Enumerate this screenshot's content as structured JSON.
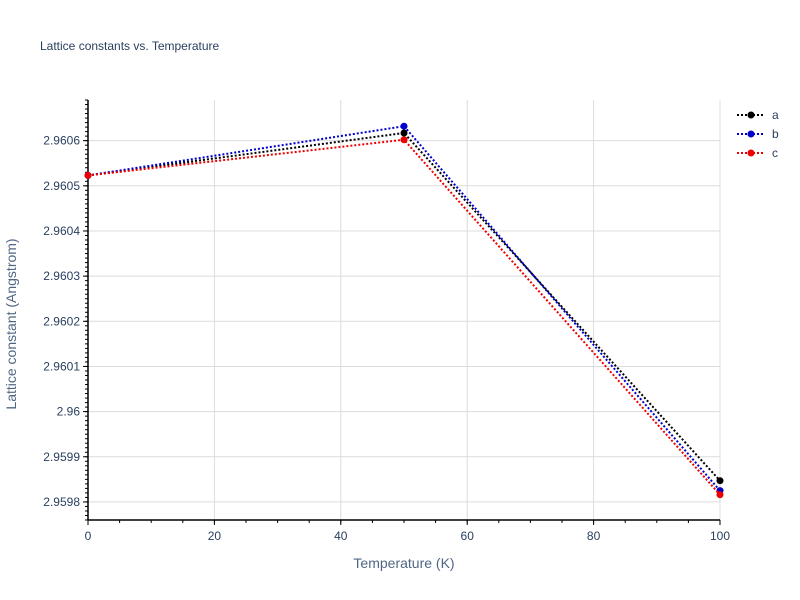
{
  "chart_data": {
    "type": "line",
    "title": "Lattice constants vs. Temperature",
    "xlabel": "Temperature (K)",
    "ylabel": "Lattice constant (Angstrom)",
    "xlim": [
      0,
      100
    ],
    "ylim": [
      2.95976,
      2.96069
    ],
    "x_ticks": [
      0,
      20,
      40,
      60,
      80,
      100
    ],
    "x_tick_labels": [
      "0",
      "20",
      "40",
      "60",
      "80",
      "100"
    ],
    "y_ticks": [
      2.9598,
      2.9599,
      2.96,
      2.9601,
      2.9602,
      2.9603,
      2.9604,
      2.9605,
      2.9606
    ],
    "y_tick_labels": [
      "2.9598",
      "2.9599",
      "2.96",
      "2.9601",
      "2.9602",
      "2.9603",
      "2.9604",
      "2.9605",
      "2.9606"
    ],
    "grid": true,
    "legend_position": "top-right",
    "line_style": "dotted",
    "x": [
      0,
      50,
      100
    ],
    "series": [
      {
        "name": "a",
        "color": "#000000",
        "values": [
          2.960523,
          2.960617,
          2.959847
        ]
      },
      {
        "name": "b",
        "color": "#0000cc",
        "values": [
          2.960523,
          2.960632,
          2.959825
        ]
      },
      {
        "name": "c",
        "color": "#ee0000",
        "values": [
          2.960523,
          2.960602,
          2.959816
        ]
      }
    ]
  }
}
